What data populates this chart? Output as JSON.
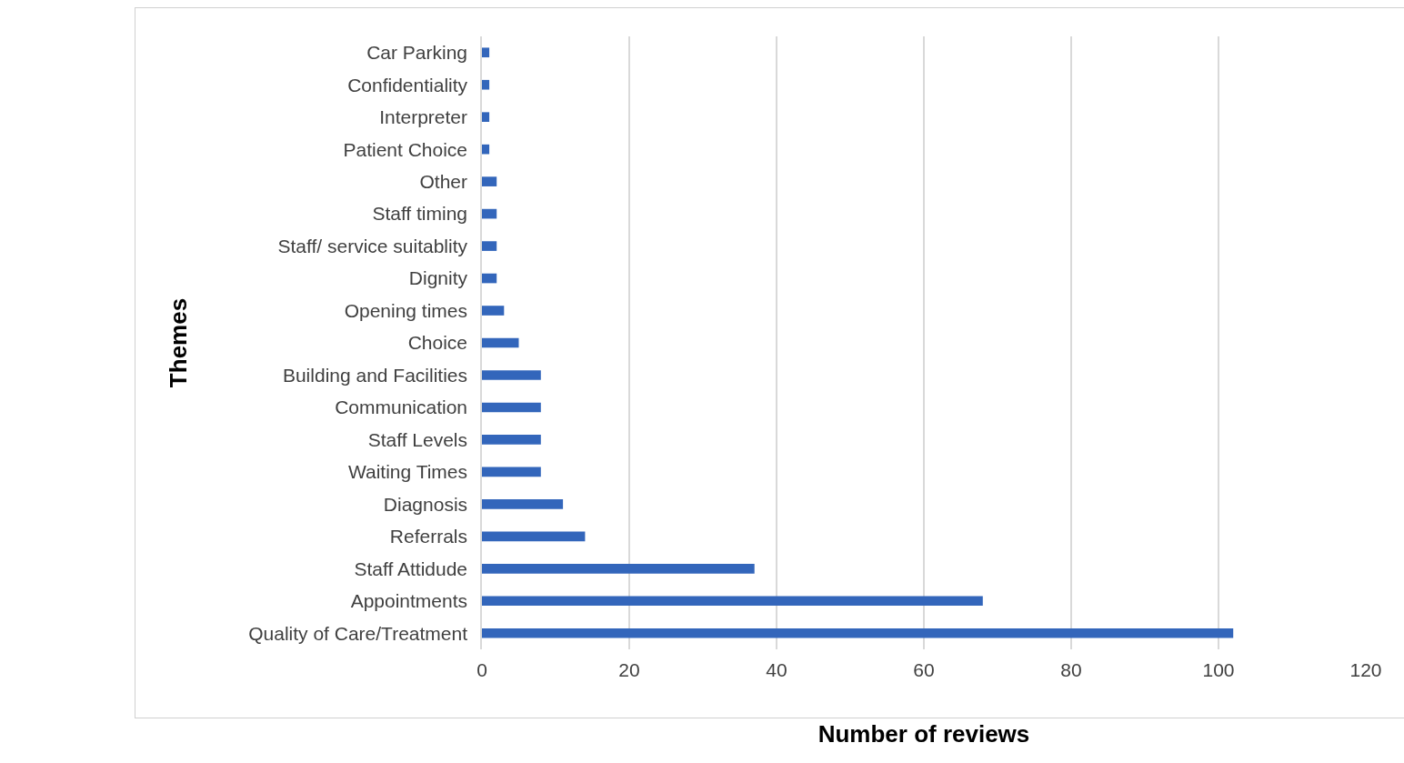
{
  "chart_data": {
    "type": "bar",
    "orientation": "horizontal",
    "xlabel": "Number of reviews",
    "ylabel": "Themes",
    "categories": [
      "Car Parking",
      "Confidentiality",
      "Interpreter",
      "Patient Choice",
      "Other",
      "Staff timing",
      "Staff/ service suitablity",
      "Dignity",
      "Opening times",
      "Choice",
      "Building and Facilities",
      "Communication",
      "Staff Levels",
      "Waiting Times",
      "Diagnosis",
      "Referrals",
      "Staff Attidude",
      "Appointments",
      "Quality of Care/Treatment"
    ],
    "values": [
      1,
      1,
      1,
      1,
      2,
      2,
      2,
      2,
      3,
      5,
      8,
      8,
      8,
      8,
      11,
      14,
      37,
      68,
      102
    ],
    "color": "#3366bb",
    "xlim": [
      0,
      120
    ],
    "xticks": [
      0,
      20,
      40,
      60,
      80,
      100,
      120
    ],
    "grid": "x"
  }
}
